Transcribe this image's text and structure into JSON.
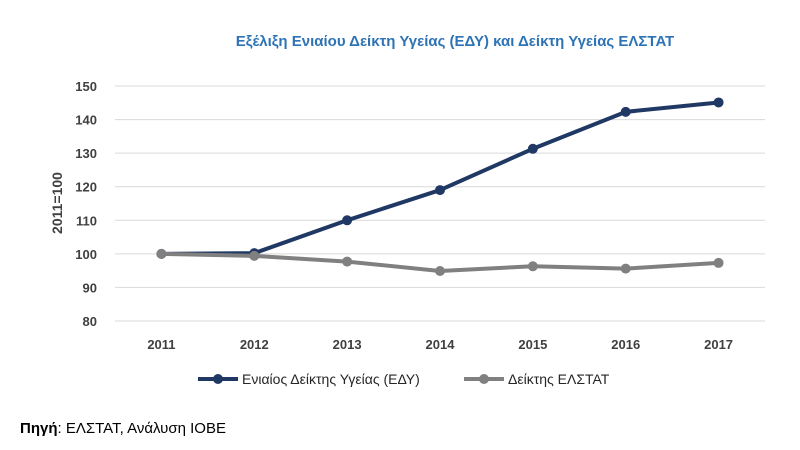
{
  "chart_data": {
    "type": "line",
    "title": "Εξέλιξη Ενιαίου Δείκτη Υγείας (ΕΔΥ) και Δείκτη Υγείας ΕΛΣΤΑΤ",
    "ylabel": "2011=100",
    "xlabel": "",
    "x": [
      "2011",
      "2012",
      "2013",
      "2014",
      "2015",
      "2016",
      "2017"
    ],
    "yticks": [
      80,
      90,
      100,
      110,
      120,
      130,
      140,
      150
    ],
    "ylim": [
      80,
      150
    ],
    "grid": true,
    "legend_position": "bottom",
    "series": [
      {
        "name": "Ενιαίος Δείκτης Υγείας (ΕΔΥ)",
        "color": "#1f3864",
        "values": [
          100,
          100.2,
          110,
          119,
          131.3,
          142.3,
          145.1
        ]
      },
      {
        "name": "Δείκτης ΕΛΣΤΑΤ",
        "color": "#808080",
        "values": [
          100,
          99.4,
          97.7,
          94.9,
          96.3,
          95.6,
          97.3
        ]
      }
    ]
  },
  "source": {
    "label": "Πηγή",
    "text": ": ΕΛΣΤΑΤ, Ανάλυση ΙΟΒΕ"
  }
}
